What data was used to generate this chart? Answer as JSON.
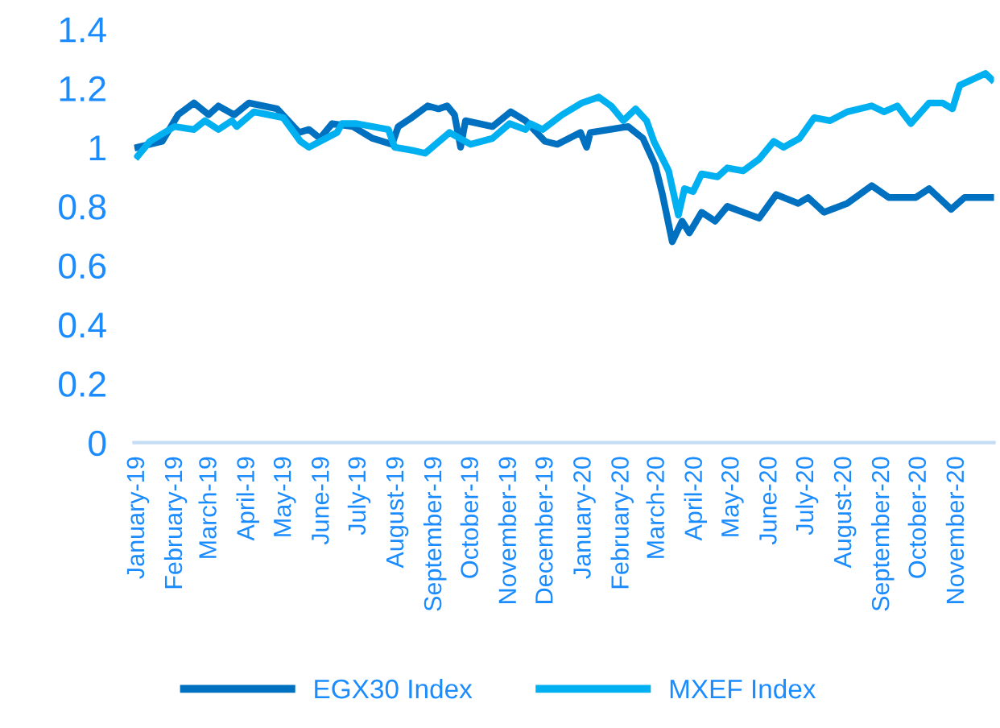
{
  "chart_data": {
    "type": "line",
    "xlim": [
      "2018-12-29",
      "2020-12-01"
    ],
    "xticks": [
      {
        "value": "2019-01-01",
        "label": "January-19"
      },
      {
        "value": "2019-02-01",
        "label": "February-19"
      },
      {
        "value": "2019-03-01",
        "label": "March-19"
      },
      {
        "value": "2019-04-01",
        "label": "April-19"
      },
      {
        "value": "2019-05-01",
        "label": "May-19"
      },
      {
        "value": "2019-06-01",
        "label": "June-19"
      },
      {
        "value": "2019-07-01",
        "label": "July-19"
      },
      {
        "value": "2019-08-01",
        "label": "August-19"
      },
      {
        "value": "2019-09-01",
        "label": "September-19"
      },
      {
        "value": "2019-10-01",
        "label": "October-19"
      },
      {
        "value": "2019-11-01",
        "label": "November-19"
      },
      {
        "value": "2019-12-01",
        "label": "December-19"
      },
      {
        "value": "2020-01-01",
        "label": "January-20"
      },
      {
        "value": "2020-02-01",
        "label": "February-20"
      },
      {
        "value": "2020-03-01",
        "label": "March-20"
      },
      {
        "value": "2020-04-01",
        "label": "April-20"
      },
      {
        "value": "2020-05-01",
        "label": "May-20"
      },
      {
        "value": "2020-06-01",
        "label": "June-20"
      },
      {
        "value": "2020-07-01",
        "label": "July-20"
      },
      {
        "value": "2020-08-01",
        "label": "August-20"
      },
      {
        "value": "2020-09-01",
        "label": "September-20"
      },
      {
        "value": "2020-10-01",
        "label": "October-20"
      },
      {
        "value": "2020-11-01",
        "label": "November-20"
      }
    ],
    "ylim": [
      0,
      1.4
    ],
    "yticks": [
      0,
      {
        "value": 0.2,
        "label": "0.2"
      },
      {
        "value": 0.4,
        "label": "0.4"
      },
      {
        "value": 0.6,
        "label": "0.6"
      },
      {
        "value": 0.8,
        "label": "0.8"
      },
      1,
      {
        "value": 1.2,
        "label": "1.2"
      },
      {
        "value": 1.4,
        "label": "1.4"
      }
    ],
    "grid": false,
    "legend": "bottom",
    "marker": "none",
    "line_style": "solid",
    "series": [
      {
        "name": "EGX30 Index",
        "color": "#0070c0",
        "x": [
          "2019-01-01",
          "2019-01-21",
          "2019-02-03",
          "2019-02-16",
          "2019-02-28",
          "2019-03-08",
          "2019-03-21",
          "2019-04-02",
          "2019-04-25",
          "2019-05-13",
          "2019-05-21",
          "2019-05-30",
          "2019-06-09",
          "2019-06-26",
          "2019-07-12",
          "2019-07-28",
          "2019-08-02",
          "2019-08-13",
          "2019-08-26",
          "2019-09-04",
          "2019-09-11",
          "2019-09-17",
          "2019-09-22",
          "2019-09-26",
          "2019-10-18",
          "2019-11-02",
          "2019-11-14",
          "2019-11-30",
          "2019-12-10",
          "2019-12-29",
          "2020-01-03",
          "2020-01-06",
          "2020-02-06",
          "2020-02-18",
          "2020-02-28",
          "2020-03-05",
          "2020-03-13",
          "2020-03-21",
          "2020-03-27",
          "2020-04-06",
          "2020-04-17",
          "2020-04-27",
          "2020-05-10",
          "2020-05-23",
          "2020-06-06",
          "2020-06-24",
          "2020-07-02",
          "2020-07-15",
          "2020-08-03",
          "2020-08-23",
          "2020-09-06",
          "2020-09-28",
          "2020-10-09",
          "2020-10-27",
          "2020-11-07",
          "2020-11-29"
        ],
        "values": [
          1.0,
          1.02,
          1.11,
          1.15,
          1.11,
          1.14,
          1.11,
          1.15,
          1.13,
          1.05,
          1.06,
          1.03,
          1.08,
          1.07,
          1.03,
          1.01,
          1.07,
          1.1,
          1.14,
          1.13,
          1.14,
          1.11,
          1.0,
          1.09,
          1.07,
          1.12,
          1.09,
          1.02,
          1.01,
          1.05,
          1.0,
          1.05,
          1.07,
          1.03,
          0.94,
          0.84,
          0.68,
          0.75,
          0.71,
          0.78,
          0.75,
          0.8,
          0.78,
          0.76,
          0.84,
          0.81,
          0.83,
          0.78,
          0.81,
          0.87,
          0.83,
          0.83,
          0.86,
          0.79,
          0.83,
          0.83
        ]
      },
      {
        "name": "MXEF Index",
        "color": "#00b0f0",
        "x": [
          "2019-01-01",
          "2019-01-11",
          "2019-01-31",
          "2019-02-16",
          "2019-02-25",
          "2019-03-08",
          "2019-03-19",
          "2019-03-23",
          "2019-04-06",
          "2019-04-30",
          "2019-05-14",
          "2019-05-21",
          "2019-06-13",
          "2019-06-17",
          "2019-06-29",
          "2019-07-25",
          "2019-07-30",
          "2019-08-13",
          "2019-08-24",
          "2019-09-13",
          "2019-09-30",
          "2019-10-18",
          "2019-11-01",
          "2019-11-14",
          "2019-11-18",
          "2019-11-28",
          "2019-12-14",
          "2019-12-30",
          "2020-01-13",
          "2020-01-23",
          "2020-02-02",
          "2020-02-12",
          "2020-02-21",
          "2020-02-27",
          "2020-03-10",
          "2020-03-18",
          "2020-03-23",
          "2020-03-30",
          "2020-04-06",
          "2020-04-19",
          "2020-04-27",
          "2020-05-10",
          "2020-05-23",
          "2020-06-04",
          "2020-06-12",
          "2020-06-25",
          "2020-07-07",
          "2020-07-20",
          "2020-08-03",
          "2020-08-23",
          "2020-09-02",
          "2020-09-13",
          "2020-09-24",
          "2020-10-09",
          "2020-10-20",
          "2020-10-28",
          "2020-11-03",
          "2020-11-24",
          "2020-11-29"
        ],
        "values": [
          0.97,
          1.02,
          1.07,
          1.06,
          1.09,
          1.06,
          1.09,
          1.07,
          1.12,
          1.1,
          1.02,
          1.0,
          1.05,
          1.08,
          1.08,
          1.06,
          1.0,
          0.99,
          0.98,
          1.05,
          1.01,
          1.03,
          1.08,
          1.06,
          1.08,
          1.06,
          1.11,
          1.15,
          1.17,
          1.14,
          1.09,
          1.13,
          1.09,
          1.02,
          0.92,
          0.77,
          0.86,
          0.85,
          0.91,
          0.9,
          0.93,
          0.92,
          0.96,
          1.02,
          1.0,
          1.03,
          1.1,
          1.09,
          1.12,
          1.14,
          1.12,
          1.14,
          1.08,
          1.15,
          1.15,
          1.13,
          1.21,
          1.25,
          1.23
        ]
      }
    ]
  }
}
